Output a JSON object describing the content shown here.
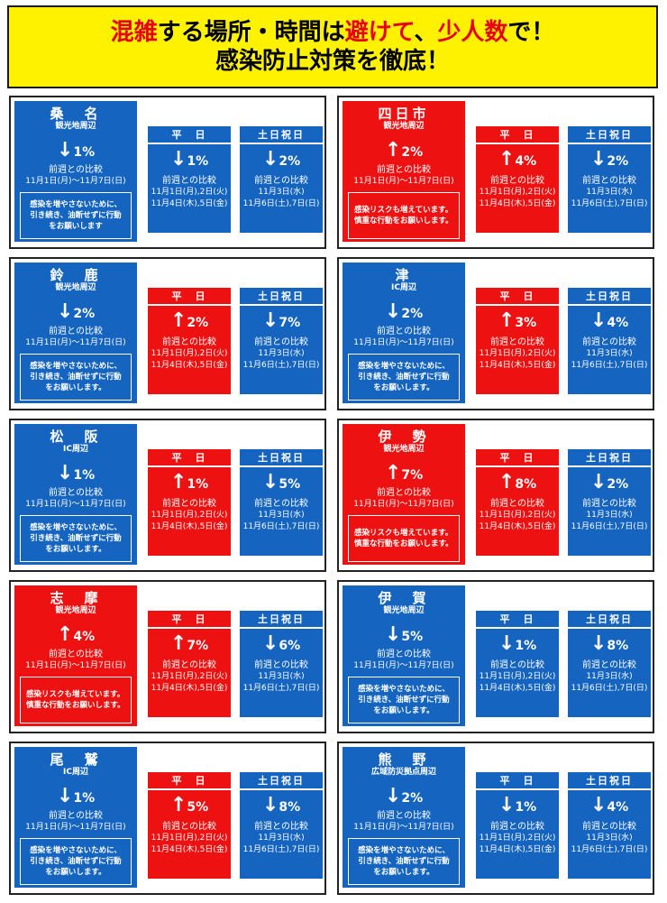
{
  "banner": {
    "line1_parts": [
      "混雑",
      "する場所・時間は",
      "避けて",
      "、",
      "少人数",
      "で！"
    ],
    "line2": "感染防止対策を徹底！"
  },
  "labels": {
    "weekday": "平　日",
    "holiday": "土日祝日",
    "compare": "前週との比較",
    "period": "11月1日(月)～11月7日(日)",
    "weekday_dates_1": "11月1日(月),2日(火)",
    "weekday_dates_2": "11月4日(木),5日(金)",
    "holiday_dates_1": "11月3日(水)",
    "holiday_dates_2": "11月6日(土),7日(日)",
    "msg_down": [
      "感染を増やさないために、",
      "引き続き、油断せずに行動",
      "をお願いします"
    ],
    "msg_down2": [
      "感染を増やさないために、",
      "引き続き、油断せずに行動",
      "をお願いします。"
    ],
    "msg_up": [
      "感染リスクも増えています。",
      "慎重な行動をお願いします。"
    ]
  },
  "colors": {
    "blue": "#1565c0",
    "red": "#ee1111",
    "yellow": "#fff200"
  },
  "areas": [
    {
      "name": "桑　名",
      "sub": "観光地周辺",
      "main": {
        "dir": "↓",
        "val": "1",
        "color": "blue"
      },
      "weekday": {
        "dir": "↓",
        "val": "1",
        "color": "blue"
      },
      "holiday": {
        "dir": "↓",
        "val": "2",
        "color": "blue"
      },
      "msg": "msg_down"
    },
    {
      "name": "四日市",
      "sub": "観光地周辺",
      "main": {
        "dir": "↑",
        "val": "2",
        "color": "red"
      },
      "weekday": {
        "dir": "↑",
        "val": "4",
        "color": "red"
      },
      "holiday": {
        "dir": "↓",
        "val": "2",
        "color": "blue"
      },
      "msg": "msg_up"
    },
    {
      "name": "鈴　鹿",
      "sub": "観光地周辺",
      "main": {
        "dir": "↓",
        "val": "2",
        "color": "blue"
      },
      "weekday": {
        "dir": "↑",
        "val": "2",
        "color": "red"
      },
      "holiday": {
        "dir": "↓",
        "val": "7",
        "color": "blue"
      },
      "msg": "msg_down2"
    },
    {
      "name": "津",
      "sub": "IC周辺",
      "main": {
        "dir": "↓",
        "val": "2",
        "color": "blue"
      },
      "weekday": {
        "dir": "↑",
        "val": "3",
        "color": "red"
      },
      "holiday": {
        "dir": "↓",
        "val": "4",
        "color": "blue"
      },
      "msg": "msg_down2"
    },
    {
      "name": "松　阪",
      "sub": "IC周辺",
      "main": {
        "dir": "↓",
        "val": "1",
        "color": "blue"
      },
      "weekday": {
        "dir": "↑",
        "val": "1",
        "color": "red"
      },
      "holiday": {
        "dir": "↓",
        "val": "5",
        "color": "blue"
      },
      "msg": "msg_down2"
    },
    {
      "name": "伊　勢",
      "sub": "観光地周辺",
      "main": {
        "dir": "↑",
        "val": "7",
        "color": "red"
      },
      "weekday": {
        "dir": "↑",
        "val": "8",
        "color": "red"
      },
      "holiday": {
        "dir": "↓",
        "val": "2",
        "color": "blue"
      },
      "msg": "msg_up"
    },
    {
      "name": "志　摩",
      "sub": "観光地周辺",
      "main": {
        "dir": "↑",
        "val": "4",
        "color": "red"
      },
      "weekday": {
        "dir": "↑",
        "val": "7",
        "color": "red"
      },
      "holiday": {
        "dir": "↓",
        "val": "6",
        "color": "blue"
      },
      "msg": "msg_up"
    },
    {
      "name": "伊　賀",
      "sub": "観光地周辺",
      "main": {
        "dir": "↓",
        "val": "5",
        "color": "blue"
      },
      "weekday": {
        "dir": "↓",
        "val": "1",
        "color": "blue"
      },
      "holiday": {
        "dir": "↓",
        "val": "8",
        "color": "blue"
      },
      "msg": "msg_down2"
    },
    {
      "name": "尾　鷲",
      "sub": "IC周辺",
      "main": {
        "dir": "↓",
        "val": "1",
        "color": "blue"
      },
      "weekday": {
        "dir": "↑",
        "val": "5",
        "color": "red"
      },
      "holiday": {
        "dir": "↓",
        "val": "8",
        "color": "blue"
      },
      "msg": "msg_down2"
    },
    {
      "name": "熊　野",
      "sub": "広域防災拠点周辺",
      "main": {
        "dir": "↓",
        "val": "2",
        "color": "blue"
      },
      "weekday": {
        "dir": "↓",
        "val": "1",
        "color": "blue"
      },
      "holiday": {
        "dir": "↓",
        "val": "4",
        "color": "blue"
      },
      "msg": "msg_down2"
    }
  ]
}
